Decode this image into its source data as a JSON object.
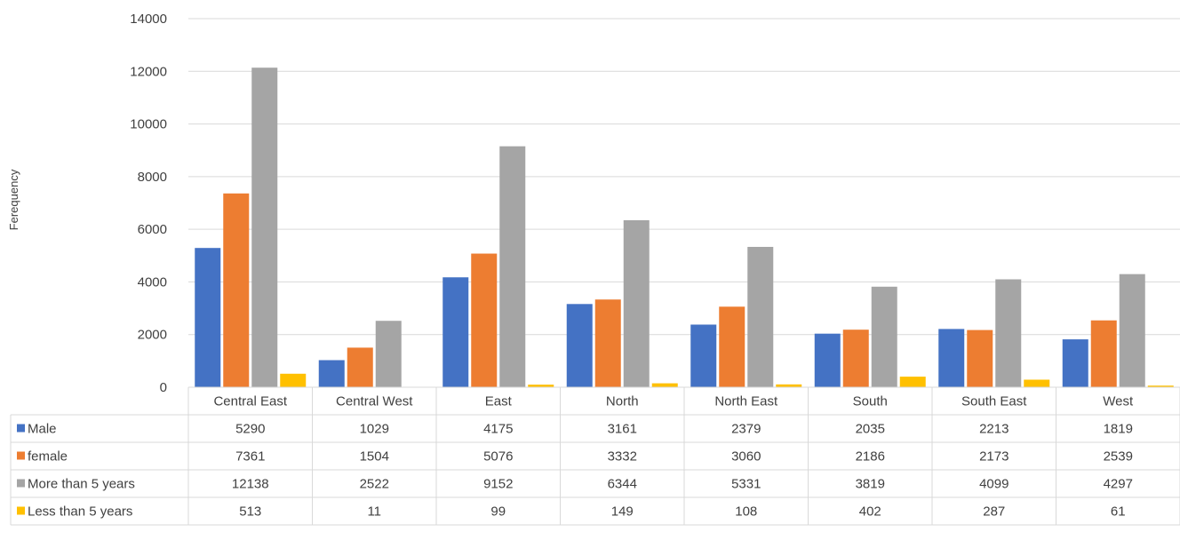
{
  "colors": {
    "Male": "#4472c4",
    "female": "#ed7d31",
    "More than 5 years": "#a5a5a5",
    "Less than 5 years": "#ffc000",
    "grid": "#d9d9d9",
    "text": "#404040"
  },
  "chart_data": {
    "type": "bar",
    "ylabel": "Ferequency",
    "ylim": [
      0,
      14000
    ],
    "yticks": [
      0,
      2000,
      4000,
      6000,
      8000,
      10000,
      12000,
      14000
    ],
    "grid": true,
    "legend": "data-table",
    "categories": [
      "Central East",
      "Central West",
      "East",
      "North",
      "North East",
      "South",
      "South East",
      "West"
    ],
    "series": [
      {
        "name": "Male",
        "values": [
          5290,
          1029,
          4175,
          3161,
          2379,
          2035,
          2213,
          1819
        ]
      },
      {
        "name": "female",
        "values": [
          7361,
          1504,
          5076,
          3332,
          3060,
          2186,
          2173,
          2539
        ]
      },
      {
        "name": "More than 5 years",
        "values": [
          12138,
          2522,
          9152,
          6344,
          5331,
          3819,
          4099,
          4297
        ]
      },
      {
        "name": "Less than 5 years",
        "values": [
          513,
          11,
          99,
          149,
          108,
          402,
          287,
          61
        ]
      }
    ]
  }
}
